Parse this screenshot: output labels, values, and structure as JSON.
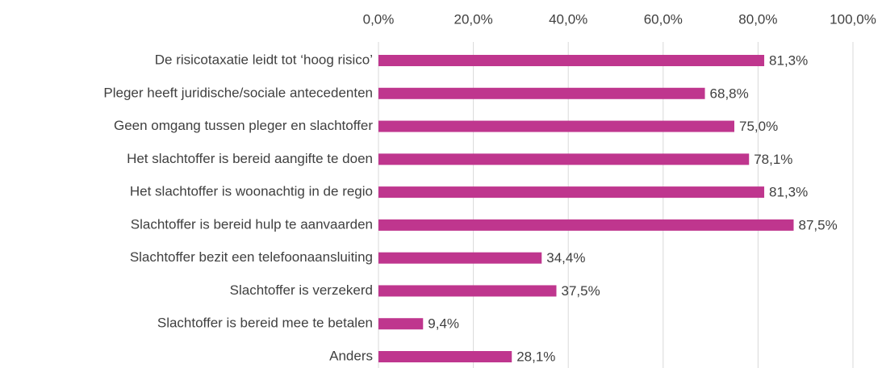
{
  "chart_data": {
    "type": "bar",
    "orientation": "horizontal",
    "categories": [
      "De risicotaxatie leidt tot ‘hoog risico’",
      "Pleger heeft juridische/sociale antecedenten",
      "Geen omgang tussen pleger en slachtoffer",
      "Het slachtoffer is bereid aangifte te doen",
      "Het slachtoffer is woonachtig in de regio",
      "Slachtoffer is bereid hulp te aanvaarden",
      "Slachtoffer bezit een telefoonaansluiting",
      "Slachtoffer is verzekerd",
      "Slachtoffer is bereid mee te betalen",
      "Anders"
    ],
    "values": [
      81.3,
      68.8,
      75.0,
      78.1,
      81.3,
      87.5,
      34.4,
      37.5,
      9.4,
      28.1
    ],
    "value_labels": [
      "81,3%",
      "68,8%",
      "75,0%",
      "78,1%",
      "81,3%",
      "87,5%",
      "34,4%",
      "37,5%",
      "9,4%",
      "28,1%"
    ],
    "color": "#bf368e",
    "xlim": [
      0,
      100
    ],
    "xticks": [
      {
        "value": 0,
        "label": "0,0%"
      },
      {
        "value": 20,
        "label": "20,0%"
      },
      {
        "value": 40,
        "label": "40,0%"
      },
      {
        "value": 60,
        "label": "60,0%"
      },
      {
        "value": 80,
        "label": "80,0%"
      },
      {
        "value": 100,
        "label": "100,0%"
      }
    ],
    "grid": true
  }
}
